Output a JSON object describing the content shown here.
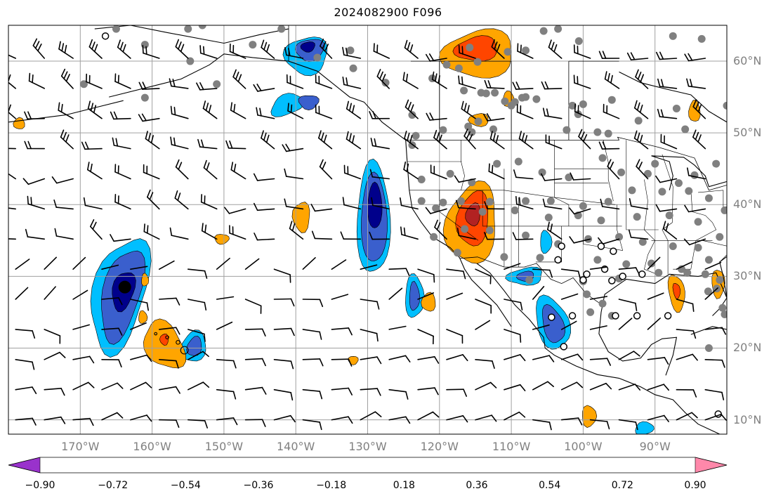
{
  "title": "2024082900 F096",
  "map": {
    "projection": "plate-carree",
    "lon_range": [
      -180,
      -80
    ],
    "lat_range": [
      8,
      65
    ],
    "lat_labels": [
      "10°N",
      "20°N",
      "30°N",
      "40°N",
      "50°N",
      "60°N"
    ],
    "lon_labels": [
      "170°W",
      "160°W",
      "150°W",
      "140°W",
      "130°W",
      "120°W",
      "110°W",
      "100°W",
      "90°W"
    ],
    "gridlines": true,
    "features": [
      "coastlines",
      "country-borders",
      "state-borders",
      "wind-barbs",
      "station-markers"
    ]
  },
  "colorbar": {
    "orientation": "horizontal",
    "extend": "both",
    "tick_labels": [
      "−0.90",
      "−0.72",
      "−0.54",
      "−0.36",
      "−0.18",
      "0.18",
      "0.36",
      "0.54",
      "0.72",
      "0.90"
    ],
    "colors": [
      "#9932cc",
      "#00008b",
      "#3a5fcd",
      "#00bfff",
      "#b0e2ff",
      "#ffffff",
      "#fff08c",
      "#ffa500",
      "#ff4500",
      "#b22222",
      "#ff88aa"
    ]
  },
  "anomaly_regions": [
    {
      "name": "hawaii-trough",
      "sign": "negative",
      "max_level": -0.72
    },
    {
      "name": "offshore-california",
      "sign": "negative",
      "max_level": -0.72
    },
    {
      "name": "gulf-of-california",
      "sign": "negative",
      "max_level": -0.72
    },
    {
      "name": "southwest-us",
      "sign": "positive",
      "max_level": 0.72
    },
    {
      "name": "canada-north",
      "sign": "positive",
      "max_level": 0.54
    },
    {
      "name": "alaska-gulf",
      "sign": "negative",
      "max_level": -0.72
    },
    {
      "name": "pacific-east-hawaii",
      "sign": "positive",
      "max_level": 0.54
    },
    {
      "name": "gulf-coast",
      "sign": "positive",
      "max_level": 0.54
    }
  ]
}
